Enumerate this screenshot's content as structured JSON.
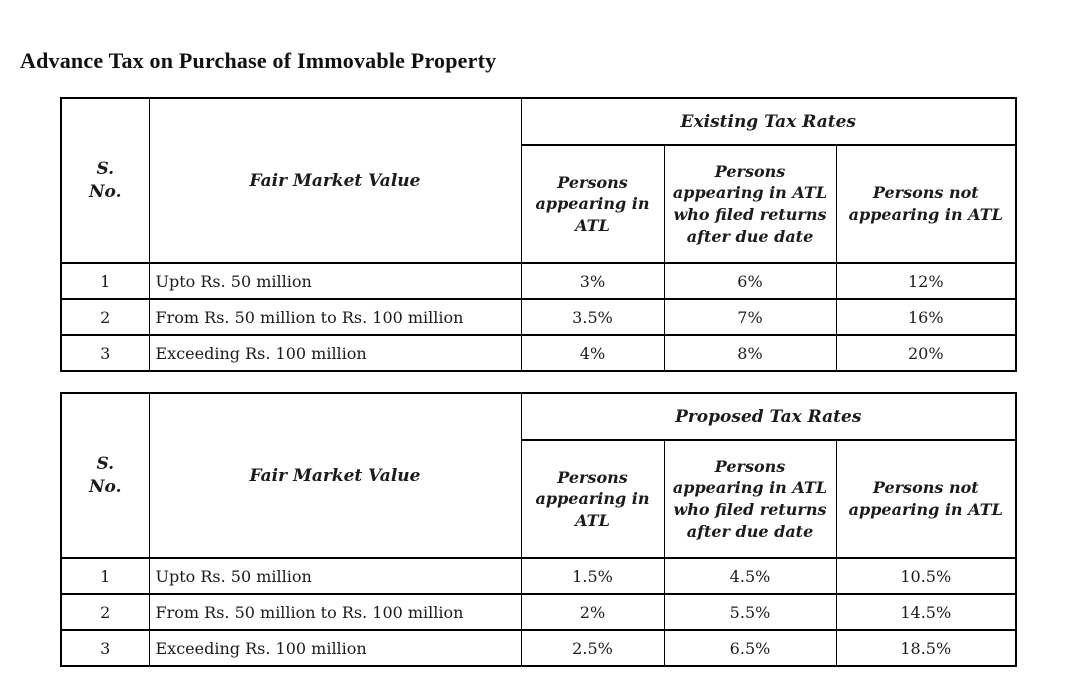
{
  "title": "Advance Tax on Purchase of Immovable Property",
  "tables": [
    {
      "group_header": "Existing Tax Rates",
      "columns": {
        "sno": "S.\nNo.",
        "fmv": "Fair Market Value",
        "atl": "Persons appearing in ATL",
        "atl_late": "Persons appearing in ATL who filed returns after due date",
        "non_atl": "Persons not appearing in ATL"
      },
      "rows": [
        {
          "sno": "1",
          "fmv": "Upto Rs. 50 million",
          "atl": "3%",
          "atl_late": "6%",
          "non_atl": "12%"
        },
        {
          "sno": "2",
          "fmv": "From Rs. 50 million to Rs. 100 million",
          "atl": "3.5%",
          "atl_late": "7%",
          "non_atl": "16%"
        },
        {
          "sno": "3",
          "fmv": "Exceeding Rs. 100 million",
          "atl": "4%",
          "atl_late": "8%",
          "non_atl": "20%"
        }
      ]
    },
    {
      "group_header": "Proposed Tax Rates",
      "columns": {
        "sno": "S.\nNo.",
        "fmv": "Fair Market Value",
        "atl": "Persons appearing in ATL",
        "atl_late": "Persons appearing in ATL who filed returns after due date",
        "non_atl": "Persons not appearing in ATL"
      },
      "rows": [
        {
          "sno": "1",
          "fmv": "Upto Rs. 50 million",
          "atl": "1.5%",
          "atl_late": "4.5%",
          "non_atl": "10.5%"
        },
        {
          "sno": "2",
          "fmv": "From Rs. 50 million to Rs. 100 million",
          "atl": "2%",
          "atl_late": "5.5%",
          "non_atl": "14.5%"
        },
        {
          "sno": "3",
          "fmv": "Exceeding Rs. 100 million",
          "atl": "2.5%",
          "atl_late": "6.5%",
          "non_atl": "18.5%"
        }
      ]
    }
  ]
}
